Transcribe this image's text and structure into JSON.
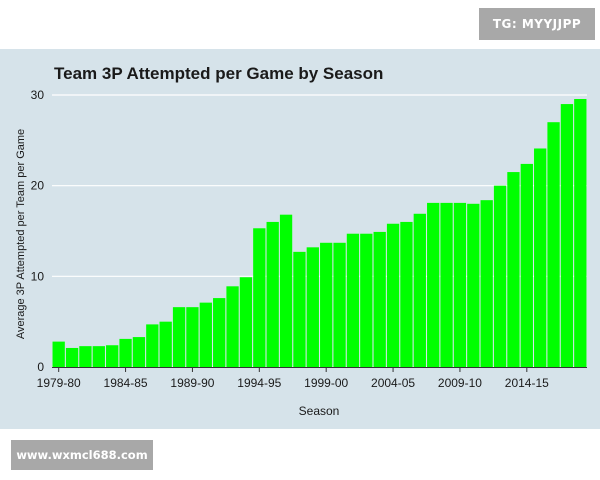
{
  "watermarks": {
    "top": "TG: MYYJJPP",
    "bottom": "www.wxmcl688.com"
  },
  "colors": {
    "bar": "#00ff00",
    "panel_background": "#d6e3ea",
    "gridline": "#ffffff",
    "text": "#1a1a1a"
  },
  "chart_data": {
    "type": "bar",
    "title": "Team 3P Attempted per Game by Season",
    "xlabel": "Season",
    "ylabel": "Average 3P Attempted per Team per Game",
    "ylim": [
      0,
      30
    ],
    "yticks": [
      0,
      10,
      20,
      30
    ],
    "grid": "horizontal",
    "categories": [
      "1979-80",
      "1980-81",
      "1981-82",
      "1982-83",
      "1983-84",
      "1984-85",
      "1985-86",
      "1986-87",
      "1987-88",
      "1988-89",
      "1989-90",
      "1990-91",
      "1991-92",
      "1992-93",
      "1993-94",
      "1994-95",
      "1995-96",
      "1996-97",
      "1997-98",
      "1998-99",
      "1999-00",
      "2000-01",
      "2001-02",
      "2002-03",
      "2003-04",
      "2004-05",
      "2005-06",
      "2006-07",
      "2007-08",
      "2008-09",
      "2009-10",
      "2010-11",
      "2011-12",
      "2012-13",
      "2013-14",
      "2014-15",
      "2015-16",
      "2016-17",
      "2017-18",
      "2018-19"
    ],
    "xtick_labels": [
      "1979-80",
      "1984-85",
      "1989-90",
      "1994-95",
      "1999-00",
      "2004-05",
      "2009-10",
      "2014-15"
    ],
    "values": [
      2.8,
      2.1,
      2.3,
      2.3,
      2.4,
      3.1,
      3.3,
      4.7,
      5.0,
      6.6,
      6.6,
      7.1,
      7.6,
      8.9,
      9.9,
      15.3,
      16.0,
      16.8,
      12.7,
      13.2,
      13.7,
      13.7,
      14.7,
      14.7,
      14.9,
      15.8,
      16.0,
      16.9,
      18.1,
      18.1,
      18.1,
      18.0,
      18.4,
      20.0,
      21.5,
      22.4,
      24.1,
      27.0,
      29.0,
      32.0
    ]
  }
}
